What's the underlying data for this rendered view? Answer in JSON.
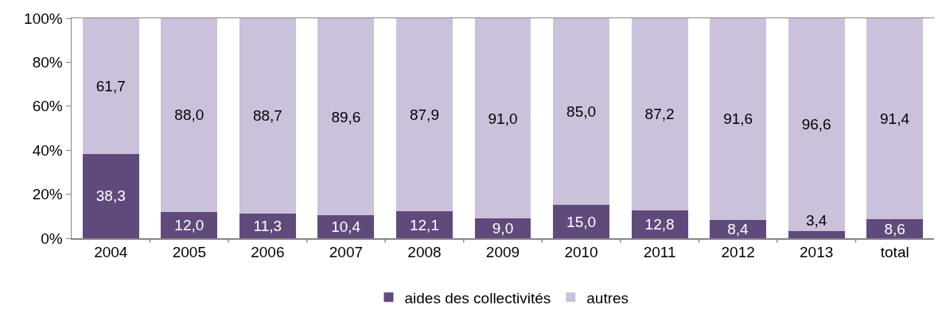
{
  "chart_data": {
    "type": "bar",
    "stacked": true,
    "categories": [
      "2004",
      "2005",
      "2006",
      "2007",
      "2008",
      "2009",
      "2010",
      "2011",
      "2012",
      "2013",
      "total"
    ],
    "series": [
      {
        "name": "aides des collectivités",
        "color": "#604a7b",
        "values": [
          38.3,
          12.0,
          11.3,
          10.4,
          12.1,
          9.0,
          15.0,
          12.8,
          8.4,
          3.4,
          8.6
        ],
        "value_labels": [
          "38,3",
          "12,0",
          "11,3",
          "10,4",
          "12,1",
          "9,0",
          "15,0",
          "12,8",
          "8,4",
          "3,4",
          "8,6"
        ]
      },
      {
        "name": "autres",
        "color": "#ccc1da",
        "values": [
          61.7,
          88.0,
          88.7,
          89.6,
          87.9,
          91.0,
          85.0,
          87.2,
          91.6,
          96.6,
          91.4
        ],
        "value_labels": [
          "61,7",
          "88,0",
          "88,7",
          "89,6",
          "87,9",
          "91,0",
          "85,0",
          "87,2",
          "91,6",
          "96,6",
          "91,4"
        ]
      }
    ],
    "ylim": [
      0,
      100
    ],
    "yticks": [
      {
        "value": 0,
        "label": "0%"
      },
      {
        "value": 20,
        "label": "20%"
      },
      {
        "value": 40,
        "label": "40%"
      },
      {
        "value": 60,
        "label": "60%"
      },
      {
        "value": 80,
        "label": "80%"
      },
      {
        "value": 100,
        "label": "100%"
      }
    ],
    "grid": false,
    "legend": "bottom"
  }
}
